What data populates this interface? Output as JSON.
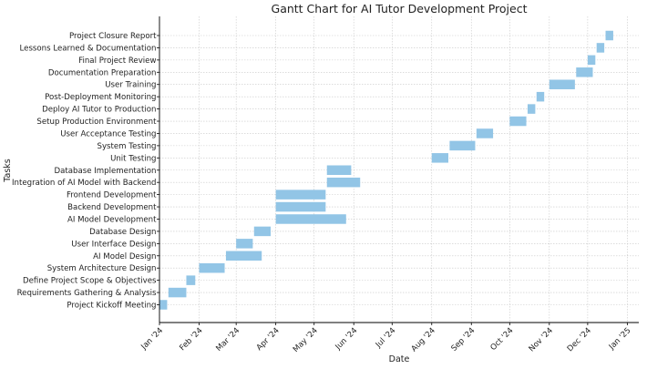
{
  "chart_data": {
    "type": "gantt",
    "title": "Gantt Chart for AI Tutor Development Project",
    "xlabel": "Date",
    "ylabel": "Tasks",
    "x_ticks": [
      "Jan '24",
      "Feb '24",
      "Mar '24",
      "Apr '24",
      "May '24",
      "Jun '24",
      "Jul '24",
      "Aug '24",
      "Sep '24",
      "Oct '24",
      "Nov '24",
      "Dec '24",
      "Jan '25"
    ],
    "xlim": [
      "2024-01-01",
      "2025-01-10"
    ],
    "grid": true,
    "bar_color": "#92c5e6",
    "tasks": [
      {
        "name": "Project Kickoff Meeting",
        "start": "2024-01-01",
        "end": "2024-01-07"
      },
      {
        "name": "Requirements Gathering & Analysis",
        "start": "2024-01-08",
        "end": "2024-01-22"
      },
      {
        "name": "Define Project Scope & Objectives",
        "start": "2024-01-22",
        "end": "2024-01-29"
      },
      {
        "name": "System Architecture Design",
        "start": "2024-02-01",
        "end": "2024-02-21"
      },
      {
        "name": "AI Model Design",
        "start": "2024-02-22",
        "end": "2024-03-21"
      },
      {
        "name": "User Interface Design",
        "start": "2024-03-01",
        "end": "2024-03-14"
      },
      {
        "name": "Database Design",
        "start": "2024-03-15",
        "end": "2024-03-28"
      },
      {
        "name": "AI Model Development",
        "start": "2024-04-01",
        "end": "2024-05-26"
      },
      {
        "name": "Backend Development",
        "start": "2024-04-01",
        "end": "2024-05-10"
      },
      {
        "name": "Frontend Development",
        "start": "2024-04-01",
        "end": "2024-05-10"
      },
      {
        "name": "Integration of AI Model with Backend",
        "start": "2024-05-11",
        "end": "2024-06-06"
      },
      {
        "name": "Database Implementation",
        "start": "2024-05-11",
        "end": "2024-05-30"
      },
      {
        "name": "Unit Testing",
        "start": "2024-08-01",
        "end": "2024-08-14"
      },
      {
        "name": "System Testing",
        "start": "2024-08-15",
        "end": "2024-09-04"
      },
      {
        "name": "User Acceptance Testing",
        "start": "2024-09-05",
        "end": "2024-09-18"
      },
      {
        "name": "Setup Production Environment",
        "start": "2024-10-01",
        "end": "2024-10-14"
      },
      {
        "name": "Deploy AI Tutor to Production",
        "start": "2024-10-15",
        "end": "2024-10-21"
      },
      {
        "name": "Post-Deployment Monitoring",
        "start": "2024-10-22",
        "end": "2024-10-28"
      },
      {
        "name": "User Training",
        "start": "2024-11-01",
        "end": "2024-11-21"
      },
      {
        "name": "Documentation Preparation",
        "start": "2024-11-22",
        "end": "2024-12-05"
      },
      {
        "name": "Final Project Review",
        "start": "2024-12-01",
        "end": "2024-12-07"
      },
      {
        "name": "Lessons Learned & Documentation",
        "start": "2024-12-08",
        "end": "2024-12-14"
      },
      {
        "name": "Project Closure Report",
        "start": "2024-12-15",
        "end": "2024-12-21"
      }
    ]
  }
}
